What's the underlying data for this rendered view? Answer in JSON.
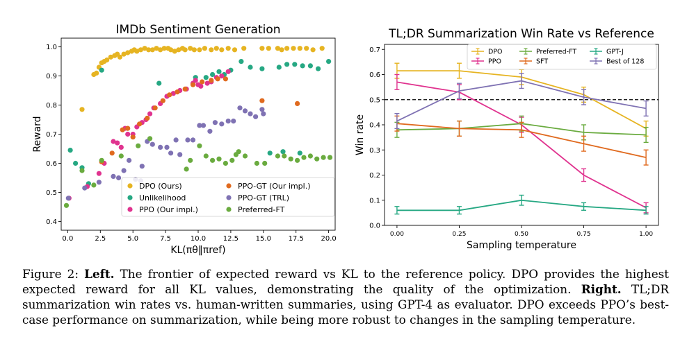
{
  "chart_data": [
    {
      "type": "scatter",
      "title": "IMDb Sentiment Generation",
      "xlabel": "KL(πθ‖πref)",
      "ylabel": "Reward",
      "xlim": [
        -0.5,
        20.5
      ],
      "ylim": [
        0.37,
        1.03
      ],
      "xticks": [
        0.0,
        2.5,
        5.0,
        7.5,
        10.0,
        12.5,
        15.0,
        17.5,
        20.0
      ],
      "xtick_labels": [
        "0.0",
        "2.5",
        "5.0",
        "7.5",
        "10.0",
        "12.5",
        "15.0",
        "17.5",
        "20.0"
      ],
      "yticks": [
        0.4,
        0.5,
        0.6,
        0.7,
        0.8,
        0.9,
        1.0
      ],
      "ytick_labels": [
        "0.4",
        "0.5",
        "0.6",
        "0.7",
        "0.8",
        "0.9",
        "1.0"
      ],
      "grid": false,
      "legend_position": "bottom-center",
      "series": [
        {
          "name": "DPO (Ours)",
          "color": "#e6b422",
          "points": [
            [
              1.1,
              0.785
            ],
            [
              2.0,
              0.905
            ],
            [
              2.2,
              0.91
            ],
            [
              2.4,
              0.93
            ],
            [
              2.6,
              0.945
            ],
            [
              2.8,
              0.95
            ],
            [
              3.0,
              0.955
            ],
            [
              3.3,
              0.965
            ],
            [
              3.6,
              0.97
            ],
            [
              3.8,
              0.975
            ],
            [
              4.0,
              0.965
            ],
            [
              4.3,
              0.975
            ],
            [
              4.6,
              0.98
            ],
            [
              4.9,
              0.985
            ],
            [
              5.1,
              0.99
            ],
            [
              5.3,
              0.985
            ],
            [
              5.6,
              0.99
            ],
            [
              5.9,
              0.995
            ],
            [
              6.2,
              0.99
            ],
            [
              6.5,
              0.99
            ],
            [
              6.8,
              0.995
            ],
            [
              7.1,
              0.99
            ],
            [
              7.4,
              0.995
            ],
            [
              7.7,
              0.995
            ],
            [
              7.9,
              0.99
            ],
            [
              8.2,
              0.985
            ],
            [
              8.5,
              0.99
            ],
            [
              8.8,
              0.995
            ],
            [
              9.0,
              0.99
            ],
            [
              9.4,
              0.995
            ],
            [
              9.7,
              0.99
            ],
            [
              10.1,
              0.99
            ],
            [
              10.5,
              0.995
            ],
            [
              11.0,
              0.99
            ],
            [
              11.4,
              0.995
            ],
            [
              11.8,
              0.99
            ],
            [
              12.3,
              0.995
            ],
            [
              12.8,
              0.99
            ],
            [
              13.5,
              0.995
            ],
            [
              14.9,
              0.995
            ],
            [
              15.4,
              0.995
            ],
            [
              16.1,
              0.995
            ],
            [
              16.4,
              0.99
            ],
            [
              16.8,
              0.995
            ],
            [
              17.3,
              0.995
            ],
            [
              17.8,
              0.995
            ],
            [
              18.3,
              0.995
            ],
            [
              18.8,
              0.99
            ],
            [
              19.5,
              0.995
            ]
          ]
        },
        {
          "name": "Unlikelihood",
          "color": "#26a883",
          "points": [
            [
              0.2,
              0.645
            ],
            [
              0.6,
              0.6
            ],
            [
              1.1,
              0.585
            ],
            [
              1.6,
              0.53
            ],
            [
              2.6,
              0.92
            ],
            [
              7.0,
              0.875
            ],
            [
              9.8,
              0.895
            ],
            [
              10.6,
              0.895
            ],
            [
              11.1,
              0.905
            ],
            [
              11.6,
              0.915
            ],
            [
              12.0,
              0.905
            ],
            [
              12.5,
              0.92
            ],
            [
              13.3,
              0.95
            ],
            [
              14.0,
              0.93
            ],
            [
              14.9,
              0.925
            ],
            [
              16.2,
              0.93
            ],
            [
              16.8,
              0.94
            ],
            [
              17.4,
              0.94
            ],
            [
              18.0,
              0.935
            ],
            [
              18.6,
              0.935
            ],
            [
              19.2,
              0.925
            ],
            [
              20.0,
              0.95
            ],
            [
              16.5,
              0.64
            ],
            [
              15.5,
              0.635
            ],
            [
              17.8,
              0.635
            ]
          ]
        },
        {
          "name": "PPO (Our impl.)",
          "color": "#e0338f",
          "points": [
            [
              0.1,
              0.48
            ],
            [
              1.5,
              0.52
            ],
            [
              2.4,
              0.565
            ],
            [
              2.8,
              0.6
            ],
            [
              3.5,
              0.675
            ],
            [
              3.8,
              0.67
            ],
            [
              4.1,
              0.655
            ],
            [
              4.4,
              0.72
            ],
            [
              4.6,
              0.7
            ],
            [
              5.0,
              0.7
            ],
            [
              5.3,
              0.725
            ],
            [
              5.7,
              0.74
            ],
            [
              6.0,
              0.75
            ],
            [
              6.3,
              0.77
            ],
            [
              6.6,
              0.79
            ],
            [
              7.1,
              0.805
            ],
            [
              7.6,
              0.83
            ],
            [
              8.1,
              0.84
            ],
            [
              8.6,
              0.85
            ],
            [
              9.1,
              0.855
            ],
            [
              9.6,
              0.875
            ],
            [
              10.2,
              0.865
            ],
            [
              10.7,
              0.875
            ],
            [
              11.0,
              0.88
            ],
            [
              11.4,
              0.895
            ],
            [
              11.8,
              0.9
            ],
            [
              12.3,
              0.915
            ],
            [
              9.8,
              0.885
            ],
            [
              10.0,
              0.87
            ]
          ]
        },
        {
          "name": "PPO-GT (Our impl.)",
          "color": "#e06a1f",
          "points": [
            [
              2.6,
              0.605
            ],
            [
              3.4,
              0.635
            ],
            [
              4.2,
              0.715
            ],
            [
              4.6,
              0.72
            ],
            [
              5.0,
              0.69
            ],
            [
              5.5,
              0.735
            ],
            [
              6.1,
              0.755
            ],
            [
              6.7,
              0.79
            ],
            [
              7.3,
              0.815
            ],
            [
              7.8,
              0.835
            ],
            [
              8.4,
              0.845
            ],
            [
              9.0,
              0.855
            ],
            [
              9.6,
              0.87
            ],
            [
              10.3,
              0.88
            ],
            [
              11.0,
              0.885
            ],
            [
              11.5,
              0.89
            ],
            [
              12.1,
              0.89
            ],
            [
              14.9,
              0.815
            ],
            [
              17.6,
              0.805
            ]
          ]
        },
        {
          "name": "PPO-GT (TRL)",
          "color": "#7f72b3",
          "points": [
            [
              0.05,
              0.48
            ],
            [
              1.3,
              0.515
            ],
            [
              2.4,
              0.535
            ],
            [
              3.5,
              0.555
            ],
            [
              3.9,
              0.55
            ],
            [
              4.3,
              0.575
            ],
            [
              4.7,
              0.61
            ],
            [
              5.2,
              0.545
            ],
            [
              5.6,
              0.54
            ],
            [
              5.7,
              0.59
            ],
            [
              6.1,
              0.675
            ],
            [
              6.5,
              0.665
            ],
            [
              7.1,
              0.655
            ],
            [
              7.6,
              0.655
            ],
            [
              7.9,
              0.635
            ],
            [
              8.3,
              0.68
            ],
            [
              8.6,
              0.63
            ],
            [
              9.2,
              0.68
            ],
            [
              9.6,
              0.68
            ],
            [
              10.1,
              0.73
            ],
            [
              10.4,
              0.73
            ],
            [
              10.9,
              0.71
            ],
            [
              11.3,
              0.74
            ],
            [
              11.8,
              0.735
            ],
            [
              12.3,
              0.745
            ],
            [
              12.7,
              0.745
            ],
            [
              13.2,
              0.79
            ],
            [
              13.6,
              0.78
            ],
            [
              14.0,
              0.77
            ],
            [
              14.4,
              0.76
            ],
            [
              14.9,
              0.785
            ],
            [
              15.0,
              0.77
            ]
          ]
        },
        {
          "name": "Preferred-FT",
          "color": "#6aab3f",
          "points": [
            [
              -0.1,
              0.455
            ],
            [
              1.1,
              0.575
            ],
            [
              2.0,
              0.525
            ],
            [
              2.6,
              0.61
            ],
            [
              4.1,
              0.625
            ],
            [
              5.4,
              0.66
            ],
            [
              6.3,
              0.685
            ],
            [
              9.1,
              0.58
            ],
            [
              9.4,
              0.61
            ],
            [
              10.1,
              0.66
            ],
            [
              10.6,
              0.625
            ],
            [
              11.1,
              0.61
            ],
            [
              11.6,
              0.615
            ],
            [
              12.1,
              0.6
            ],
            [
              12.6,
              0.61
            ],
            [
              13.1,
              0.64
            ],
            [
              13.6,
              0.625
            ],
            [
              14.5,
              0.6
            ],
            [
              15.1,
              0.6
            ],
            [
              16.1,
              0.625
            ],
            [
              16.6,
              0.625
            ],
            [
              17.1,
              0.615
            ],
            [
              17.6,
              0.61
            ],
            [
              18.1,
              0.62
            ],
            [
              18.6,
              0.625
            ],
            [
              19.1,
              0.615
            ],
            [
              19.6,
              0.62
            ],
            [
              20.1,
              0.62
            ],
            [
              12.9,
              0.63
            ]
          ]
        }
      ]
    },
    {
      "type": "line",
      "title": "TL;DR Summarization Win Rate vs Reference",
      "xlabel": "Sampling temperature",
      "ylabel": "Win rate",
      "x": [
        0.0,
        0.25,
        0.5,
        0.75,
        1.0
      ],
      "xlim": [
        -0.05,
        1.05
      ],
      "ylim": [
        0.0,
        0.72
      ],
      "xticks": [
        0.0,
        0.25,
        0.5,
        0.75,
        1.0
      ],
      "xtick_labels": [
        "0.00",
        "0.25",
        "0.50",
        "0.75",
        "1.00"
      ],
      "yticks": [
        0.0,
        0.1,
        0.2,
        0.3,
        0.4,
        0.5,
        0.6,
        0.7
      ],
      "ytick_labels": [
        "0.0",
        "0.1",
        "0.2",
        "0.3",
        "0.4",
        "0.5",
        "0.6",
        "0.7"
      ],
      "reference_line": 0.5,
      "grid": false,
      "legend_position": "top-right",
      "series": [
        {
          "name": "DPO",
          "color": "#e6b422",
          "values": [
            0.615,
            0.615,
            0.59,
            0.52,
            0.385
          ],
          "errors": [
            0.03,
            0.03,
            0.03,
            0.03,
            0.03
          ]
        },
        {
          "name": "PPO",
          "color": "#e0338f",
          "values": [
            0.57,
            0.53,
            0.4,
            0.2,
            0.07
          ],
          "errors": [
            0.03,
            0.03,
            0.03,
            0.025,
            0.02
          ]
        },
        {
          "name": "Preferred-FT",
          "color": "#6aab3f",
          "values": [
            0.38,
            0.385,
            0.405,
            0.37,
            0.36
          ],
          "errors": [
            0.03,
            0.03,
            0.03,
            0.03,
            0.03
          ]
        },
        {
          "name": "SFT",
          "color": "#e06a1f",
          "values": [
            0.405,
            0.385,
            0.38,
            0.325,
            0.27
          ],
          "errors": [
            0.03,
            0.03,
            0.03,
            0.03,
            0.03
          ]
        },
        {
          "name": "GPT-J",
          "color": "#26a883",
          "values": [
            0.06,
            0.06,
            0.1,
            0.075,
            0.06
          ],
          "errors": [
            0.015,
            0.015,
            0.02,
            0.015,
            0.015
          ]
        },
        {
          "name": "Best of 128",
          "color": "#7f72b3",
          "values": [
            0.415,
            0.535,
            0.575,
            0.51,
            0.465
          ],
          "errors": [
            0.03,
            0.03,
            0.03,
            0.03,
            0.03
          ]
        }
      ]
    }
  ],
  "caption": {
    "label": "Figure 2:",
    "left_label": "Left.",
    "left_text": "The frontier of expected reward vs KL to the reference policy. DPO provides the highest expected reward for all KL values, demonstrating the quality of the optimization.",
    "right_label": "Right.",
    "right_text": "TL;DR summarization win rates vs. human-written summaries, using GPT-4 as evaluator. DPO exceeds PPO’s best-case performance on summarization, while being more robust to changes in the sampling temperature."
  }
}
